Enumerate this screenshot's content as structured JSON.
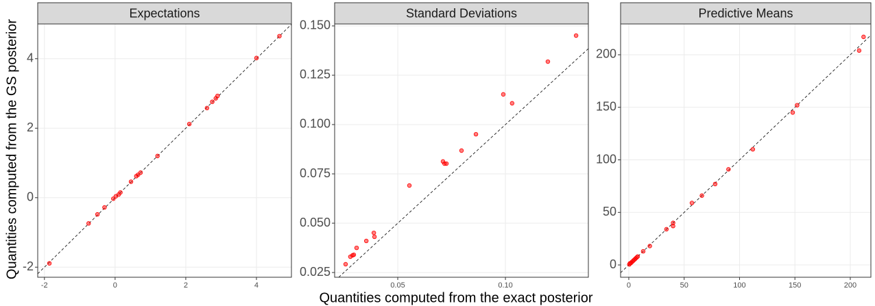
{
  "xlabel": "Quantities computed from the exact posterior",
  "ylabel": "Quantities computed from the GS posterior",
  "chart_data": [
    {
      "type": "scatter",
      "title": "Expectations",
      "color": "#ff0000",
      "grid": true,
      "x": [
        -1.86,
        -0.75,
        -0.5,
        -0.3,
        -0.05,
        0.02,
        0.1,
        0.15,
        0.45,
        0.6,
        0.65,
        0.72,
        1.2,
        2.1,
        2.6,
        2.75,
        2.85,
        2.9,
        4.0,
        4.65
      ],
      "values": [
        -1.89,
        -0.74,
        -0.48,
        -0.28,
        -0.03,
        0.04,
        0.09,
        0.15,
        0.46,
        0.62,
        0.66,
        0.72,
        1.2,
        2.12,
        2.58,
        2.76,
        2.86,
        2.93,
        4.02,
        4.65
      ],
      "xlim": [
        -2.19,
        4.99
      ],
      "ylim": [
        -2.29,
        5.0
      ],
      "xticks": [
        -2,
        0,
        2,
        4
      ],
      "yticks": [
        -2,
        0,
        2,
        4
      ]
    },
    {
      "type": "scatter",
      "title": "Standard Deviations",
      "color": "#ff0000",
      "grid": true,
      "x": [
        0.0258,
        0.028,
        0.029,
        0.0296,
        0.0309,
        0.0354,
        0.0389,
        0.0392,
        0.0554,
        0.071,
        0.0717,
        0.0726,
        0.0796,
        0.0863,
        0.099,
        0.1031,
        0.1197,
        0.1328
      ],
      "values": [
        0.0292,
        0.033,
        0.0337,
        0.034,
        0.0375,
        0.041,
        0.0451,
        0.0431,
        0.0691,
        0.0813,
        0.0802,
        0.0802,
        0.0868,
        0.0951,
        0.1153,
        0.1108,
        0.1319,
        0.1451
      ],
      "xlim": [
        0.0207,
        0.1385
      ],
      "ylim": [
        0.0226,
        0.151
      ],
      "xticks": [
        0.05,
        {
          "value": 0.1,
          "label": "0.10"
        }
      ],
      "yticks": [
        0.025,
        {
          "value": 0.05,
          "label": "0.050"
        },
        0.075,
        {
          "value": 0.1,
          "label": "0.100"
        },
        0.125,
        {
          "value": 0.15,
          "label": "0.150"
        }
      ]
    },
    {
      "type": "scatter",
      "title": "Predictive Means",
      "color": "#ff0000",
      "grid": true,
      "x": [
        0.5,
        1,
        2,
        3,
        4,
        5,
        6,
        7,
        8,
        13,
        19,
        34,
        40,
        40,
        57,
        66,
        78,
        90,
        112,
        148,
        152,
        208,
        212
      ],
      "values": [
        0.5,
        1.5,
        2,
        3,
        4,
        5,
        6,
        7,
        8,
        13,
        18,
        34,
        37,
        40,
        59,
        66,
        77,
        91,
        110,
        145,
        152,
        204,
        217
      ],
      "xlim": [
        -7.4,
        218.6
      ],
      "ylim": [
        -11.7,
        229.3
      ],
      "xticks": [
        0,
        50,
        100,
        150,
        200
      ],
      "yticks": [
        0,
        50,
        100,
        150,
        200
      ]
    }
  ]
}
